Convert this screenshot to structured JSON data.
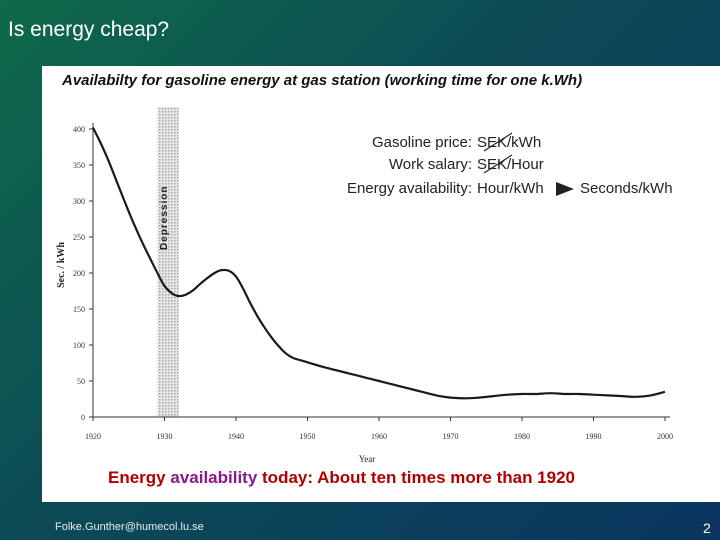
{
  "slide": {
    "title": "Is energy cheap?",
    "footer_email": "Folke.Gunther@humecol.lu.se",
    "page_number": "2"
  },
  "heading": {
    "part1": "Availabilty",
    "part2": " for gasoline energy at gas station (working time for one k.Wh)"
  },
  "summary": {
    "part1": "Energy ",
    "part2": "availability",
    "part3": " today: About ten times more than 1920"
  },
  "legend_text": {
    "line1_label": "Gasoline price: ",
    "line1_unit": "SEK/kWh",
    "line2_label": "Work salary: ",
    "line2_unit": "SEK/Hour",
    "line3_label": "Energy availability: ",
    "line3_unit": "Hour/kWh",
    "line3_new_unit": "Seconds/kWh"
  },
  "chart_data": {
    "type": "line",
    "ylabel": "Sec. / kWh",
    "xlabel": "Year",
    "xlim": [
      1920,
      2000
    ],
    "ylim": [
      0,
      400
    ],
    "x_ticks": [
      1920,
      1930,
      1940,
      1950,
      1960,
      1970,
      1980,
      1990,
      2000
    ],
    "y_ticks": [
      0,
      50,
      100,
      150,
      200,
      250,
      300,
      350,
      400
    ],
    "shaded_band": {
      "label": "Depression",
      "from": 1929,
      "to": 1932
    },
    "series": [
      {
        "x": [
          1920,
          1921,
          1922,
          1923,
          1924,
          1925,
          1926,
          1927,
          1928,
          1929,
          1930,
          1931,
          1932,
          1933,
          1934,
          1935,
          1936,
          1937,
          1938,
          1939,
          1940,
          1941,
          1942,
          1943,
          1944,
          1945,
          1946,
          1947,
          1948,
          1950,
          1952,
          1954,
          1956,
          1958,
          1960,
          1962,
          1964,
          1966,
          1968,
          1970,
          1972,
          1974,
          1976,
          1978,
          1980,
          1982,
          1984,
          1986,
          1988,
          1990,
          1992,
          1994,
          1996,
          1998,
          2000
        ],
        "y": [
          402,
          382,
          360,
          335,
          310,
          285,
          262,
          240,
          220,
          200,
          182,
          172,
          168,
          170,
          176,
          185,
          193,
          200,
          204,
          203,
          195,
          178,
          158,
          140,
          124,
          110,
          98,
          88,
          82,
          76,
          70,
          65,
          60,
          55,
          50,
          45,
          40,
          35,
          30,
          27,
          26,
          27,
          29,
          31,
          32,
          32,
          33,
          32,
          32,
          31,
          30,
          29,
          28,
          30,
          35
        ]
      }
    ]
  },
  "colors": {
    "curve": "#1a1a1a",
    "axis": "#333333",
    "band": "#cfcfcf",
    "summary_main": "#b00000",
    "summary_highlight": "#8a1a8a"
  }
}
